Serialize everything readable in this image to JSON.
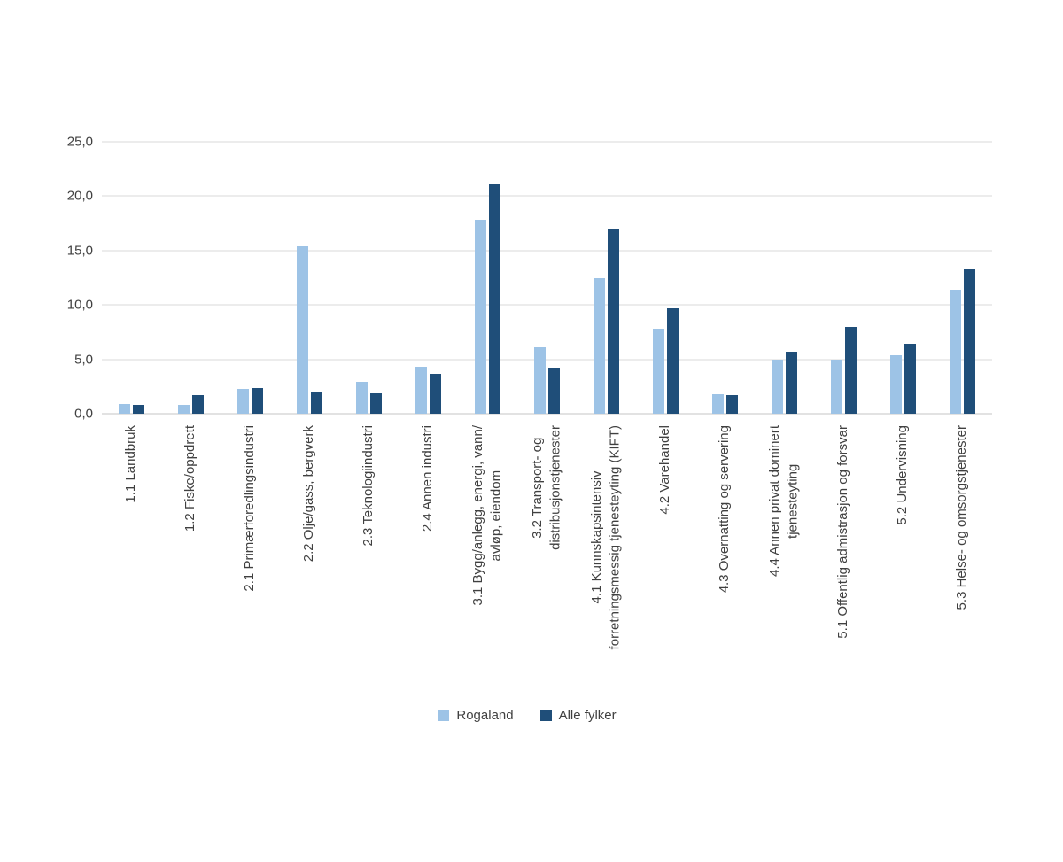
{
  "chart_data": {
    "type": "bar",
    "title": "",
    "categories": [
      "1.1 Landbruk",
      "1.2 Fiske/oppdrett",
      "2.1 Primærforedlingsindustri",
      "2.2 Olje/gass, bergverk",
      "2.3 Teknologiindustri",
      "2.4 Annen industri",
      "3.1 Bygg/anlegg, energi, vann/\navløp, eiendom",
      "3.2 Transport- og\ndistribusjonstjenester",
      "4.1 Kunnskapsintensiv\nforretningsmessig tjenesteyting (KIFT)",
      "4.2 Varehandel",
      "4.3 Overnatting og servering",
      "4.4 Annen privat dominert\ntjenesteyting",
      "5.1 Offentlig admistrasjon og forsvar",
      "5.2 Undervisning",
      "5.3 Helse- og omsorgstjenester"
    ],
    "series": [
      {
        "name": "Rogaland",
        "color": "#9DC3E6",
        "values": [
          0.9,
          0.8,
          2.3,
          15.4,
          2.9,
          4.3,
          17.8,
          6.1,
          12.5,
          7.8,
          1.8,
          5.0,
          5.0,
          5.4,
          11.4
        ]
      },
      {
        "name": "Alle fylker",
        "color": "#1F4E79",
        "values": [
          0.8,
          1.7,
          2.4,
          2.0,
          1.9,
          3.7,
          21.1,
          4.2,
          16.9,
          9.7,
          1.7,
          5.7,
          8.0,
          6.4,
          13.3
        ]
      }
    ],
    "ylim": [
      0,
      25
    ],
    "ytick_step": 5,
    "ytick_labels": [
      "0,0",
      "5,0",
      "10,0",
      "15,0",
      "20,0",
      "25,0"
    ],
    "grid": true,
    "legend_position": "bottom"
  },
  "colors": {
    "background": "#ffffff",
    "gridline": "#d9d9d9",
    "axis_line": "#c6c6c6",
    "text": "#404040"
  }
}
